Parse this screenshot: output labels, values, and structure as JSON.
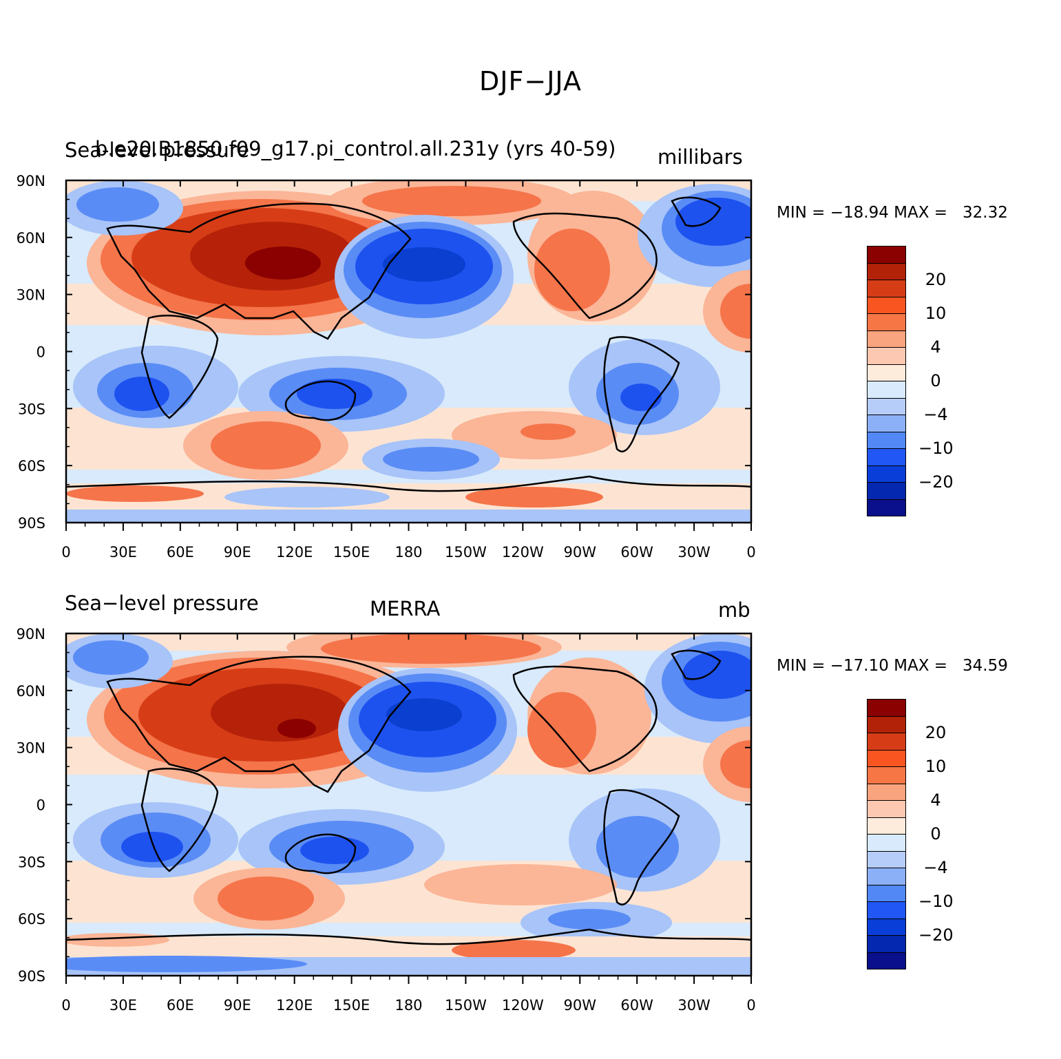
{
  "figure": {
    "title": "DJF−JJA"
  },
  "panels": [
    {
      "id": "model",
      "left_label": "Sea-level pressure",
      "center_label": "b.e20.B1850.f09_g17.pi_control.all.231y (yrs 40-59)",
      "right_label": "millibars",
      "min_max_text": "MIN = −18.94 MAX =   32.32"
    },
    {
      "id": "obs",
      "left_label": "Sea−level pressure",
      "center_label": "MERRA",
      "right_label": "mb",
      "min_max_text": "MIN = −17.10 MAX =   34.59"
    }
  ],
  "map_axes": {
    "lat_tick_labels": [
      "90N",
      "60N",
      "30N",
      "0",
      "30S",
      "60S",
      "90S"
    ],
    "lon_tick_labels": [
      "0",
      "30E",
      "60E",
      "90E",
      "120E",
      "150E",
      "180",
      "150W",
      "120W",
      "90W",
      "60W",
      "30W",
      "0"
    ],
    "lat_range": [
      -90,
      90
    ],
    "lon_range": [
      0,
      360
    ]
  },
  "colorbar": {
    "colors": [
      "#8b0000",
      "#b22208",
      "#d63d17",
      "#f85521",
      "#f67646",
      "#f9a47e",
      "#fcc8b1",
      "#fdebdc",
      "#d8eafb",
      "#b6cdf9",
      "#8cb0f8",
      "#5188f6",
      "#2057f5",
      "#0a3ed8",
      "#0528b0",
      "#0a0f8c"
    ],
    "labels": [
      "20",
      "10",
      "4",
      "0",
      "−4",
      "−10",
      "−20"
    ],
    "label_after_swatch": [
      1,
      3,
      5,
      7,
      9,
      11,
      13
    ]
  },
  "palette": {
    "pos_strong": "#b52209",
    "pos_dark": "#d63d17",
    "pos_mid": "#f5744a",
    "pos_light": "#fbb597",
    "pos_faint": "#fde4d2",
    "neg_faint": "#d8eafb",
    "neg_light": "#a8c4f8",
    "neg_mid": "#5a8cf6",
    "neg_strong": "#1e52ef",
    "neg_dark": "#0a3fd0"
  }
}
